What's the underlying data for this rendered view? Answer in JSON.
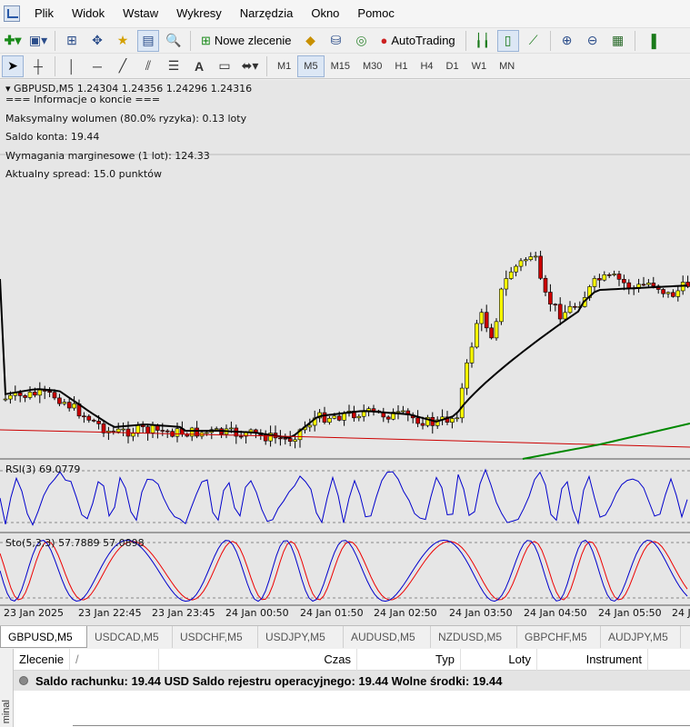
{
  "menu": [
    "Plik",
    "Widok",
    "Wstaw",
    "Wykresy",
    "Narzędzia",
    "Okno",
    "Pomoc"
  ],
  "toolbar1": {
    "new_order_label": "Nowe zlecenie",
    "autotrading_label": "AutoTrading"
  },
  "toolbar2": {
    "text_tool": "A",
    "timeframes": [
      "M1",
      "M5",
      "M15",
      "M30",
      "H1",
      "H4",
      "D1",
      "W1",
      "MN"
    ],
    "active_timeframe": "M5"
  },
  "chart": {
    "header": "GBPUSD,M5  1.24304 1.24356 1.24296 1.24316",
    "info_title": "=== Informacje o koncie ===",
    "info_lines": [
      "Maksymalny wolumen (80.0% ryzyka): 0.13 loty",
      "Saldo konta: 19.44",
      "Wymagania marginesowe (1 lot): 124.33",
      "Aktualny spread: 15.0 punktów"
    ],
    "rsi_label": "RSI(3) 69.0779",
    "sto_label": "Sto(5,3,3) 57.7889 57.0898",
    "time_labels": [
      "23 Jan 2025",
      "23 Jan 22:45",
      "23 Jan 23:45",
      "24 Jan 00:50",
      "24 Jan 01:50",
      "24 Jan 02:50",
      "24 Jan 03:50",
      "24 Jan 04:50",
      "24 Jan 05:50",
      "24 Ja"
    ],
    "colors": {
      "bull": "#ffff00",
      "bear": "#cc0000",
      "ma_fast": "#000000",
      "ma_slow": "#cc0000",
      "ma_long": "#008800",
      "rsi": "#0000cc",
      "sto_main": "#0000cc",
      "sto_signal": "#ee0000"
    }
  },
  "symbol_tabs": [
    "GBPUSD,M5",
    "USDCAD,M5",
    "USDCHF,M5",
    "USDJPY,M5",
    "AUDUSD,M5",
    "NZDUSD,M5",
    "GBPCHF,M5",
    "AUDJPY,M5"
  ],
  "active_symbol": "GBPUSD,M5",
  "terminal": {
    "side_label": "minal",
    "columns": [
      "Zlecenie",
      "/",
      "Czas",
      "Typ",
      "Loty",
      "Instrument"
    ],
    "summary": "Saldo rachunku: 19.44 USD  Saldo rejestru operacyjnego: 19.44  Wolne środki: 19.44"
  }
}
